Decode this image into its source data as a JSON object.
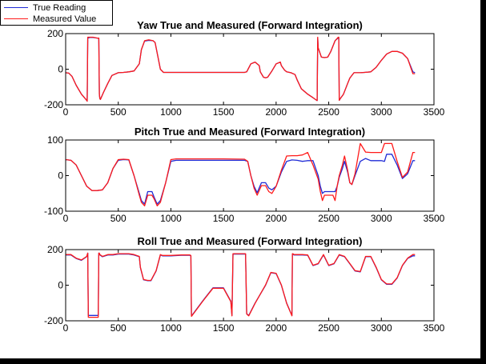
{
  "colors": {
    "true": "#1f2bd6",
    "measured": "#ff1a1a"
  },
  "legend": {
    "true_label": "True Reading",
    "measured_label": "Measured Value",
    "placement": "top-left"
  },
  "chart_data": [
    {
      "type": "line",
      "title": "Yaw True and Measured (Forward Integration)",
      "xlim": [
        0,
        3500
      ],
      "ylim": [
        -200,
        200
      ],
      "xticks": [
        0,
        500,
        1000,
        1500,
        2000,
        2500,
        3000,
        3500
      ],
      "yticks": [
        -200,
        0,
        200
      ],
      "grid": false,
      "series": [
        {
          "name": "True Reading",
          "color": "#1f2bd6",
          "x": [
            0,
            30,
            60,
            100,
            150,
            200,
            205,
            210,
            230,
            260,
            300,
            315,
            320,
            325,
            330,
            360,
            400,
            440,
            500,
            550,
            600,
            650,
            700,
            720,
            750,
            790,
            830,
            850,
            880,
            900,
            930,
            1000,
            1200,
            1500,
            1700,
            1720,
            1760,
            1800,
            1840,
            1850,
            1880,
            1900,
            1920,
            1960,
            2000,
            2040,
            2050,
            2080,
            2100,
            2140,
            2180,
            2200,
            2240,
            2300,
            2350,
            2385,
            2390,
            2395,
            2400,
            2430,
            2460,
            2490,
            2520,
            2560,
            2590,
            2595,
            2600,
            2610,
            2640,
            2680,
            2700,
            2740,
            2800,
            2840,
            2900,
            2950,
            3000,
            3050,
            3100,
            3150,
            3200,
            3250,
            3300,
            3320
          ],
          "y": [
            -20,
            -22,
            -40,
            -90,
            -140,
            -175,
            -180,
            175,
            178,
            178,
            175,
            175,
            -140,
            -165,
            -170,
            -130,
            -80,
            -35,
            -20,
            -18,
            -15,
            -10,
            30,
            110,
            158,
            162,
            160,
            150,
            60,
            0,
            -18,
            -18,
            -18,
            -18,
            -18,
            -15,
            30,
            40,
            20,
            -15,
            -45,
            -48,
            -45,
            -10,
            30,
            40,
            20,
            -5,
            -15,
            -20,
            -30,
            -60,
            -110,
            -140,
            -160,
            -175,
            -176,
            175,
            120,
            68,
            65,
            68,
            100,
            160,
            176,
            178,
            -175,
            -165,
            -140,
            -80,
            -50,
            -20,
            -20,
            -18,
            -15,
            10,
            50,
            85,
            100,
            100,
            90,
            60,
            -15,
            -20
          ]
        },
        {
          "name": "Measured Value",
          "color": "#ff1a1a",
          "x": [
            0,
            30,
            60,
            100,
            150,
            200,
            205,
            210,
            230,
            260,
            300,
            315,
            320,
            325,
            330,
            360,
            400,
            440,
            500,
            550,
            600,
            650,
            700,
            720,
            750,
            790,
            830,
            850,
            880,
            900,
            930,
            1000,
            1200,
            1500,
            1700,
            1720,
            1760,
            1800,
            1840,
            1850,
            1880,
            1900,
            1920,
            1960,
            2000,
            2040,
            2050,
            2080,
            2100,
            2140,
            2180,
            2200,
            2240,
            2300,
            2350,
            2385,
            2390,
            2395,
            2400,
            2430,
            2460,
            2490,
            2520,
            2560,
            2590,
            2595,
            2600,
            2610,
            2640,
            2680,
            2700,
            2740,
            2800,
            2840,
            2900,
            2950,
            3000,
            3050,
            3100,
            3150,
            3200,
            3250,
            3300,
            3320
          ],
          "y": [
            -20,
            -22,
            -40,
            -90,
            -140,
            -175,
            -180,
            180,
            180,
            180,
            175,
            175,
            -140,
            -165,
            -170,
            -130,
            -80,
            -35,
            -20,
            -18,
            -15,
            -10,
            30,
            110,
            160,
            165,
            160,
            150,
            60,
            0,
            -18,
            -18,
            -18,
            -18,
            -18,
            -15,
            30,
            40,
            20,
            -15,
            -45,
            -48,
            -45,
            -10,
            30,
            40,
            20,
            -5,
            -15,
            -20,
            -30,
            -60,
            -110,
            -140,
            -160,
            -175,
            -176,
            180,
            120,
            68,
            65,
            68,
            100,
            160,
            180,
            180,
            -175,
            -165,
            -140,
            -80,
            -50,
            -20,
            -20,
            -18,
            -15,
            10,
            50,
            85,
            100,
            100,
            90,
            60,
            -25,
            -25
          ]
        }
      ]
    },
    {
      "type": "line",
      "title": "Pitch True and Measured (Forward Integration)",
      "xlim": [
        0,
        3500
      ],
      "ylim": [
        -100,
        100
      ],
      "xticks": [
        0,
        500,
        1000,
        1500,
        2000,
        2500,
        3000,
        3500
      ],
      "yticks": [
        -100,
        0,
        100
      ],
      "grid": false,
      "series": [
        {
          "name": "True Reading",
          "color": "#1f2bd6",
          "x": [
            0,
            50,
            100,
            150,
            200,
            250,
            300,
            350,
            400,
            450,
            500,
            550,
            600,
            650,
            700,
            720,
            750,
            780,
            800,
            820,
            840,
            870,
            900,
            950,
            1000,
            1050,
            1500,
            1700,
            1730,
            1760,
            1790,
            1820,
            1860,
            1880,
            1900,
            1930,
            1960,
            2000,
            2050,
            2100,
            2150,
            2200,
            2250,
            2300,
            2350,
            2400,
            2420,
            2440,
            2460,
            2480,
            2520,
            2540,
            2560,
            2580,
            2600,
            2630,
            2650,
            2680,
            2700,
            2720,
            2750,
            2800,
            2850,
            2900,
            2930,
            2950,
            3000,
            3030,
            3050,
            3100,
            3150,
            3200,
            3250,
            3300,
            3320
          ],
          "y": [
            45,
            43,
            30,
            0,
            -30,
            -42,
            -42,
            -40,
            -20,
            20,
            43,
            45,
            44,
            0,
            -50,
            -70,
            -80,
            -45,
            -45,
            -45,
            -60,
            -80,
            -70,
            -20,
            40,
            43,
            43,
            43,
            40,
            0,
            -30,
            -48,
            -20,
            -20,
            -20,
            -35,
            -40,
            -30,
            10,
            40,
            44,
            43,
            40,
            42,
            42,
            0,
            -30,
            -50,
            -45,
            -45,
            -45,
            -45,
            -45,
            -30,
            -5,
            20,
            40,
            10,
            -20,
            -25,
            0,
            40,
            48,
            42,
            42,
            42,
            42,
            40,
            60,
            60,
            30,
            -8,
            5,
            42,
            42
          ]
        },
        {
          "name": "Measured Value",
          "color": "#ff1a1a",
          "x": [
            0,
            50,
            100,
            150,
            200,
            250,
            300,
            350,
            400,
            450,
            500,
            550,
            600,
            650,
            700,
            720,
            750,
            780,
            800,
            820,
            840,
            870,
            900,
            950,
            1000,
            1050,
            1500,
            1700,
            1730,
            1760,
            1790,
            1820,
            1860,
            1880,
            1900,
            1930,
            1960,
            2000,
            2050,
            2100,
            2150,
            2200,
            2250,
            2300,
            2350,
            2400,
            2420,
            2440,
            2460,
            2480,
            2520,
            2540,
            2560,
            2580,
            2600,
            2630,
            2650,
            2680,
            2700,
            2720,
            2750,
            2800,
            2850,
            2900,
            2930,
            2950,
            3000,
            3030,
            3050,
            3100,
            3150,
            3200,
            3250,
            3300,
            3320
          ],
          "y": [
            45,
            43,
            30,
            0,
            -30,
            -42,
            -42,
            -40,
            -20,
            20,
            45,
            46,
            45,
            0,
            -55,
            -75,
            -85,
            -55,
            -55,
            -55,
            -65,
            -85,
            -75,
            -20,
            45,
            47,
            47,
            46,
            40,
            0,
            -35,
            -55,
            -28,
            -28,
            -28,
            -45,
            -50,
            -30,
            15,
            55,
            56,
            56,
            58,
            65,
            30,
            -10,
            -45,
            -70,
            -55,
            -55,
            -55,
            -55,
            -70,
            -30,
            0,
            30,
            55,
            15,
            -20,
            -25,
            5,
            90,
            66,
            65,
            65,
            65,
            65,
            90,
            90,
            90,
            40,
            -5,
            10,
            65,
            65
          ]
        }
      ]
    },
    {
      "type": "line",
      "title": "Roll True and Measured (Forward Integration)",
      "xlim": [
        0,
        3500
      ],
      "ylim": [
        -200,
        200
      ],
      "xticks": [
        0,
        500,
        1000,
        1500,
        2000,
        2500,
        3000,
        3500
      ],
      "yticks": [
        -200,
        0,
        200
      ],
      "grid": false,
      "series": [
        {
          "name": "True Reading",
          "color": "#1f2bd6",
          "x": [
            0,
            50,
            100,
            150,
            200,
            210,
            215,
            220,
            250,
            280,
            310,
            315,
            320,
            325,
            350,
            400,
            450,
            500,
            600,
            650,
            700,
            710,
            740,
            780,
            810,
            860,
            900,
            920,
            950,
            1000,
            1100,
            1180,
            1190,
            1195,
            1200,
            1300,
            1400,
            1500,
            1570,
            1580,
            1590,
            1600,
            1650,
            1700,
            1710,
            1720,
            1730,
            1740,
            1800,
            1900,
            1950,
            2000,
            2050,
            2100,
            2150,
            2155,
            2160,
            2170,
            2200,
            2250,
            2300,
            2350,
            2400,
            2450,
            2500,
            2550,
            2600,
            2650,
            2700,
            2750,
            2800,
            2850,
            2900,
            2950,
            3000,
            3050,
            3100,
            3150,
            3200,
            3250,
            3300,
            3320
          ],
          "y": [
            170,
            170,
            150,
            140,
            160,
            180,
            -170,
            -170,
            -170,
            -170,
            -170,
            180,
            178,
            170,
            160,
            170,
            170,
            175,
            175,
            170,
            160,
            100,
            30,
            25,
            25,
            80,
            170,
            165,
            165,
            165,
            168,
            168,
            165,
            -170,
            -170,
            -90,
            -15,
            -15,
            -90,
            -170,
            175,
            175,
            175,
            175,
            175,
            -160,
            -165,
            -170,
            -100,
            0,
            70,
            65,
            0,
            -100,
            -170,
            175,
            175,
            170,
            170,
            170,
            168,
            110,
            120,
            170,
            110,
            120,
            170,
            160,
            120,
            80,
            75,
            160,
            160,
            100,
            30,
            5,
            5,
            40,
            110,
            150,
            165,
            165
          ]
        },
        {
          "name": "Measured Value",
          "color": "#ff1a1a",
          "x": [
            0,
            50,
            100,
            150,
            200,
            210,
            215,
            220,
            250,
            280,
            310,
            315,
            320,
            325,
            350,
            400,
            450,
            500,
            600,
            650,
            700,
            710,
            740,
            780,
            810,
            860,
            900,
            920,
            950,
            1000,
            1100,
            1180,
            1190,
            1195,
            1200,
            1300,
            1400,
            1500,
            1570,
            1580,
            1590,
            1600,
            1650,
            1700,
            1710,
            1720,
            1730,
            1740,
            1800,
            1900,
            1950,
            2000,
            2050,
            2100,
            2150,
            2155,
            2160,
            2170,
            2200,
            2250,
            2300,
            2350,
            2400,
            2450,
            2500,
            2550,
            2600,
            2650,
            2700,
            2750,
            2800,
            2850,
            2900,
            2950,
            3000,
            3050,
            3100,
            3150,
            3200,
            3250,
            3300,
            3320
          ],
          "y": [
            172,
            172,
            152,
            142,
            162,
            180,
            -180,
            -180,
            -180,
            -180,
            -180,
            180,
            180,
            172,
            162,
            172,
            172,
            177,
            177,
            172,
            162,
            102,
            32,
            27,
            27,
            82,
            172,
            167,
            167,
            167,
            170,
            170,
            167,
            -175,
            -172,
            -92,
            -17,
            -17,
            -92,
            -172,
            177,
            177,
            177,
            177,
            177,
            -162,
            -167,
            -172,
            -102,
            2,
            72,
            67,
            2,
            -102,
            -172,
            177,
            177,
            172,
            172,
            172,
            170,
            112,
            122,
            172,
            112,
            122,
            172,
            162,
            122,
            82,
            77,
            162,
            162,
            102,
            32,
            7,
            7,
            42,
            112,
            152,
            172,
            172
          ]
        }
      ]
    }
  ]
}
